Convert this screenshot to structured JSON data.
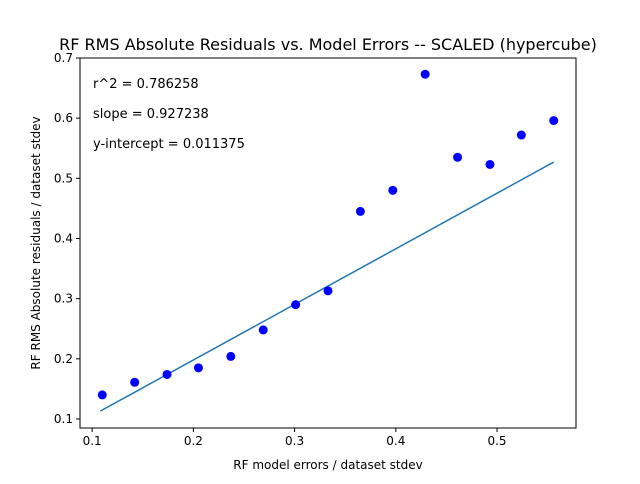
{
  "chart_data": {
    "type": "scatter",
    "title": "RF RMS Absolute Residuals vs. Model Errors -- SCALED (hypercube)",
    "xlabel": "RF model errors / dataset stdev",
    "ylabel": "RF RMS Absolute residuals / dataset stdev",
    "xlim": [
      0.088,
      0.578
    ],
    "ylim": [
      0.085,
      0.7
    ],
    "xticks": [
      "0.1",
      "0.2",
      "0.3",
      "0.4",
      "0.5"
    ],
    "yticks": [
      "0.1",
      "0.2",
      "0.3",
      "0.4",
      "0.5",
      "0.6",
      "0.7"
    ],
    "grid": false,
    "points": {
      "color": "#0000ff",
      "x": [
        0.11,
        0.142,
        0.174,
        0.205,
        0.237,
        0.269,
        0.301,
        0.333,
        0.365,
        0.397,
        0.429,
        0.461,
        0.493,
        0.524,
        0.556
      ],
      "y": [
        0.14,
        0.161,
        0.174,
        0.185,
        0.204,
        0.248,
        0.29,
        0.313,
        0.445,
        0.48,
        0.673,
        0.535,
        0.523,
        0.572,
        0.596
      ]
    },
    "fit_line": {
      "color": "#1f77b4",
      "x": [
        0.108,
        0.556
      ],
      "y": [
        0.113,
        0.527
      ]
    },
    "annotations": [
      "r^2 = 0.786258",
      "slope = 0.927238",
      "y-intercept = 0.011375"
    ]
  }
}
